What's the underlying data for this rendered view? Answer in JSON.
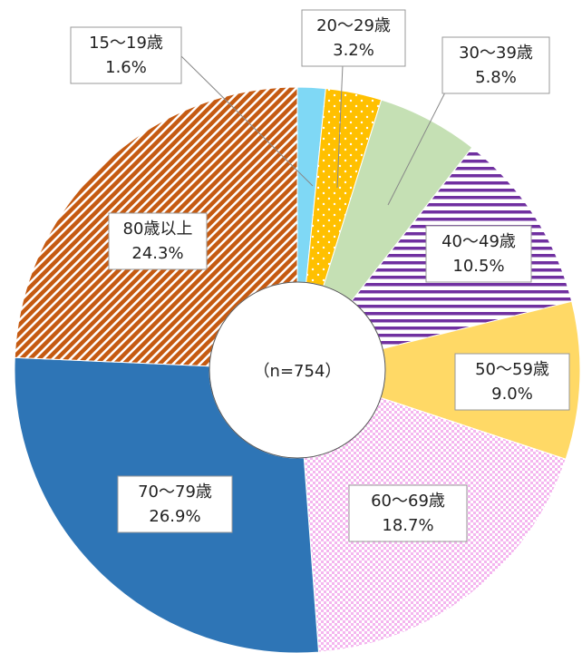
{
  "chart_data": {
    "type": "donut",
    "center_label": "（n=754）",
    "categories": [
      "15～19歳",
      "20～29歳",
      "30～39歳",
      "40～49歳",
      "50～59歳",
      "60～69歳",
      "70～79歳",
      "80歳以上"
    ],
    "values": [
      1.6,
      3.2,
      5.8,
      10.5,
      9.0,
      18.7,
      26.9,
      24.3
    ],
    "value_labels": [
      "1.6%",
      "3.2%",
      "5.8%",
      "10.5%",
      "9.0%",
      "18.7%",
      "26.9%",
      "24.3%"
    ],
    "colors": [
      "#7fd8f5",
      "#ffc000",
      "#c5e0b4",
      "#7030a0",
      "#ffd966",
      "#f4b6ef",
      "#2e75b6",
      "#c55a11"
    ],
    "patterns": [
      "solid",
      "dots",
      "solid",
      "hstripes",
      "solid",
      "checker",
      "solid",
      "diagonal"
    ]
  }
}
